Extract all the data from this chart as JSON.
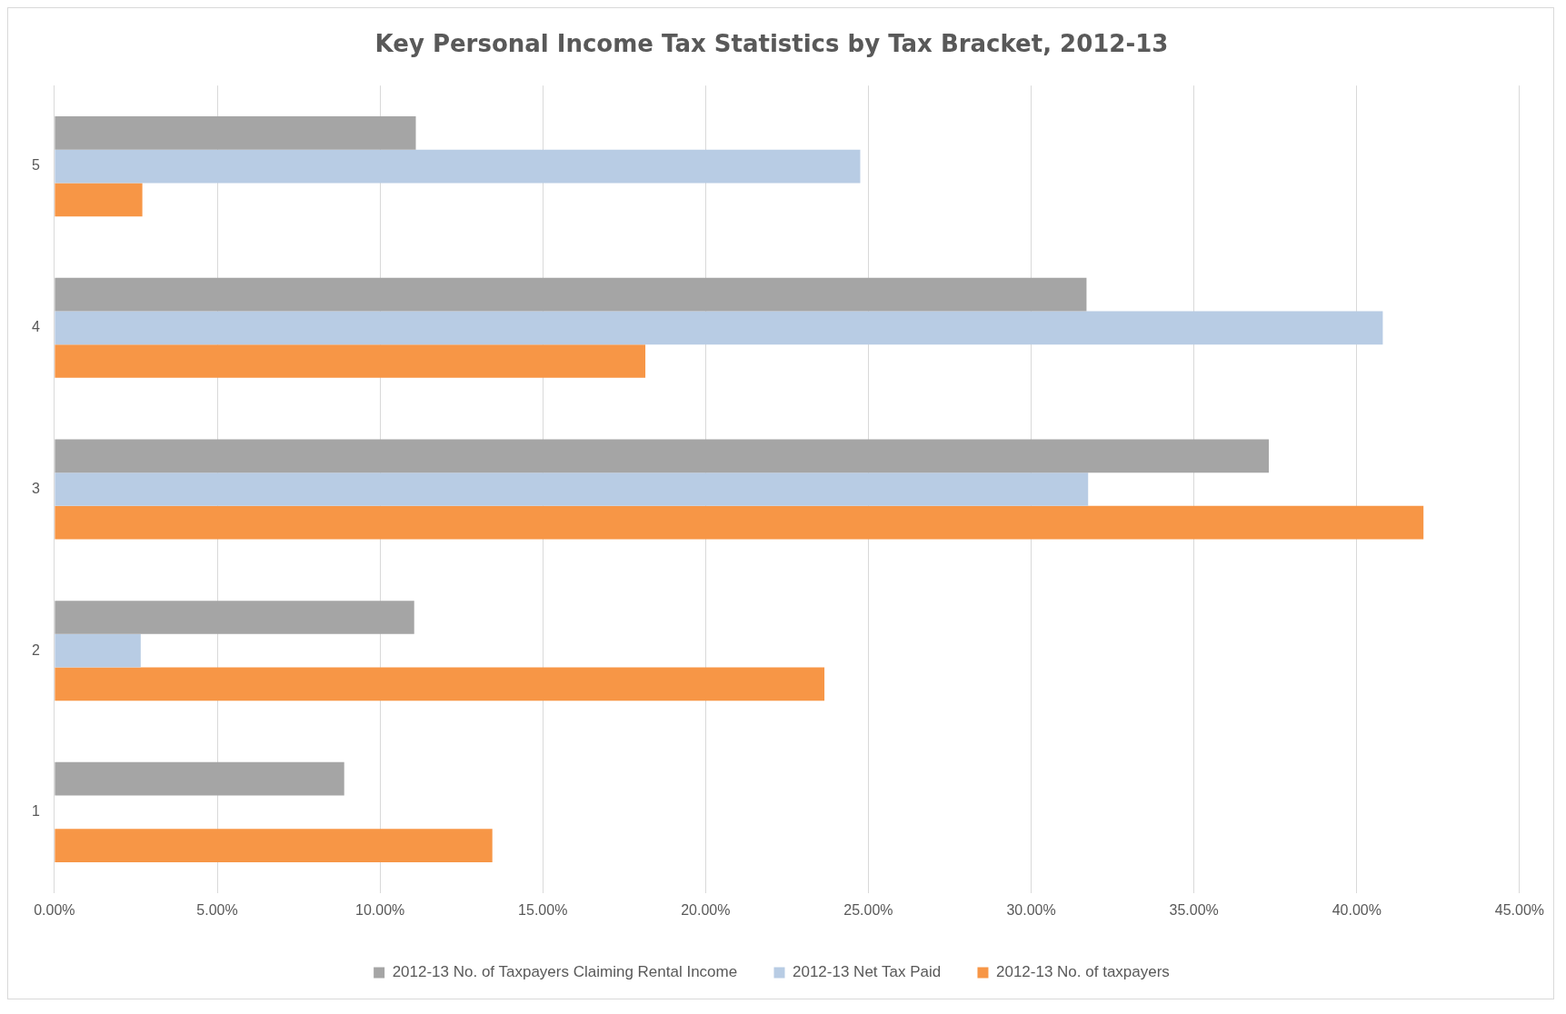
{
  "chart_data": {
    "type": "bar",
    "orientation": "horizontal",
    "title": "Key Personal Income Tax Statistics by Tax Bracket, 2012-13",
    "categories": [
      "5",
      "4",
      "3",
      "2",
      "1"
    ],
    "series": [
      {
        "name": "2012-13 No. of Taxpayers Claiming Rental Income",
        "color": "#a5a5a5",
        "values": [
          11.1,
          31.7,
          37.3,
          11.05,
          8.9
        ]
      },
      {
        "name": "2012-13 Net Tax Paid",
        "color": "#b8cce4",
        "values": [
          24.75,
          40.8,
          31.75,
          2.65,
          0
        ]
      },
      {
        "name": "2012-13 No. of taxpayers",
        "color": "#f79646",
        "values": [
          2.7,
          18.15,
          42.05,
          23.65,
          13.45
        ]
      }
    ],
    "xlim": [
      0,
      45
    ],
    "xticks": [
      {
        "value": 0,
        "label": "0.00%"
      },
      {
        "value": 5,
        "label": "5.00%"
      },
      {
        "value": 10,
        "label": "10.00%"
      },
      {
        "value": 15,
        "label": "15.00%"
      },
      {
        "value": 20,
        "label": "20.00%"
      },
      {
        "value": 25,
        "label": "25.00%"
      },
      {
        "value": 30,
        "label": "30.00%"
      },
      {
        "value": 35,
        "label": "35.00%"
      },
      {
        "value": 40,
        "label": "40.00%"
      },
      {
        "value": 45,
        "label": "45.00%"
      }
    ],
    "grid": "x",
    "legend": "bottom"
  }
}
